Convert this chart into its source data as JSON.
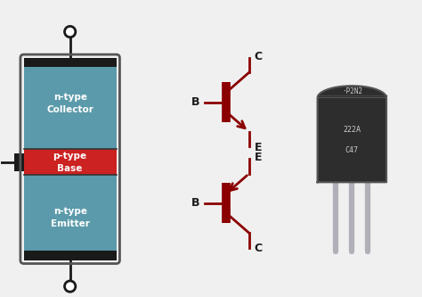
{
  "bg_color": "#f0f0f0",
  "teal_color": "#5b9aaa",
  "red_color": "#cc2222",
  "dark_red": "#8b0000",
  "black": "#1a1a1a",
  "collector_label": "n-type\nCollector",
  "base_label": "p-type\nBase",
  "emitter_label": "n-type\nEmitter",
  "C_label": "C",
  "B_label": "B",
  "E_label": "E",
  "transistor_text": [
    "·P2N2",
    "222A",
    "C47"
  ],
  "fig_width": 4.74,
  "fig_height": 3.33,
  "dpi": 100
}
